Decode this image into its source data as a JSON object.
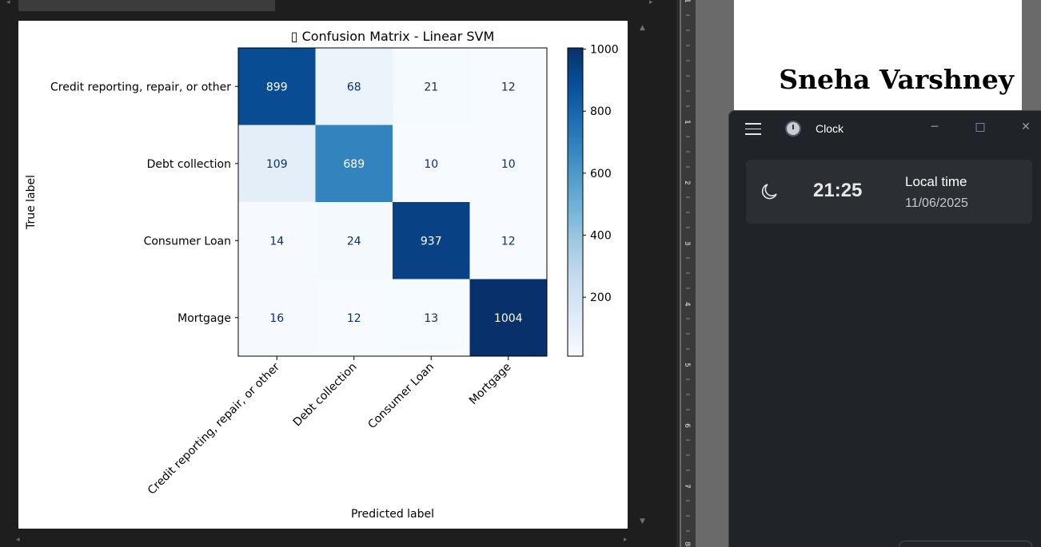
{
  "chart_data": {
    "type": "heatmap",
    "title": "▯ Confusion Matrix - Linear SVM",
    "xlabel": "Predicted label",
    "ylabel": "True label",
    "x_categories": [
      "Credit reporting, repair, or other",
      "Debt collection",
      "Consumer Loan",
      "Mortgage"
    ],
    "y_categories": [
      "Credit reporting, repair, or other",
      "Debt collection",
      "Consumer Loan",
      "Mortgage"
    ],
    "values": [
      [
        899,
        68,
        21,
        12
      ],
      [
        109,
        689,
        10,
        10
      ],
      [
        14,
        24,
        937,
        12
      ],
      [
        16,
        12,
        13,
        1004
      ]
    ],
    "colorbar_ticks": [
      200,
      400,
      600,
      800,
      1000
    ],
    "colorbar_range": [
      10,
      1004
    ],
    "colormap": "Blues",
    "colors": {
      "low": "#f7fbff",
      "high": "#08306b",
      "text_dark": "#08306b",
      "text_light": "#ffffff"
    }
  },
  "document": {
    "author": "Sneha Varshney",
    "ruler_numbers": [
      "1",
      "1",
      "2",
      "3",
      "4",
      "5",
      "6",
      "7",
      "8"
    ]
  },
  "clock": {
    "app_title": "Clock",
    "time_label": "Local time",
    "time": "21:25",
    "date": "11/06/2025",
    "icons": {
      "menu": "hamburger-icon",
      "app": "clock-app-icon",
      "moon": "moon-icon"
    }
  },
  "window_controls": {
    "minimize": "─",
    "maximize": "□",
    "close": "✕"
  }
}
